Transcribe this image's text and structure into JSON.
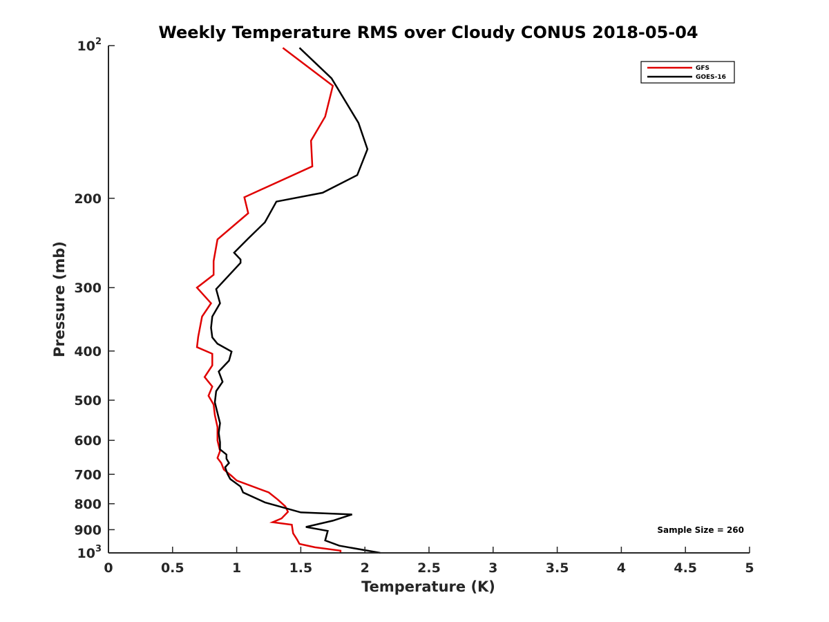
{
  "chart_data": {
    "type": "line",
    "title": "Weekly Temperature RMS over Cloudy CONUS 2018-05-04",
    "xlabel": "Temperature (K)",
    "ylabel": "Pressure (mb)",
    "xlim": [
      0,
      5
    ],
    "ylim": [
      100,
      1000
    ],
    "y_scale": "log",
    "y_reversed": true,
    "grid": false,
    "legend_position": "top-right",
    "x_ticks": [
      {
        "value": 0,
        "label": "0"
      },
      {
        "value": 0.5,
        "label": "0.5"
      },
      {
        "value": 1,
        "label": "1"
      },
      {
        "value": 1.5,
        "label": "1.5"
      },
      {
        "value": 2,
        "label": "2"
      },
      {
        "value": 2.5,
        "label": "2.5"
      },
      {
        "value": 3,
        "label": "3"
      },
      {
        "value": 3.5,
        "label": "3.5"
      },
      {
        "value": 4,
        "label": "4"
      },
      {
        "value": 4.5,
        "label": "4.5"
      },
      {
        "value": 5,
        "label": "5"
      }
    ],
    "y_ticks": [
      {
        "value": 100,
        "base": "10",
        "sup": "2"
      },
      {
        "value": 200,
        "base": "200",
        "sup": ""
      },
      {
        "value": 300,
        "base": "300",
        "sup": ""
      },
      {
        "value": 400,
        "base": "400",
        "sup": ""
      },
      {
        "value": 500,
        "base": "500",
        "sup": ""
      },
      {
        "value": 600,
        "base": "600",
        "sup": ""
      },
      {
        "value": 700,
        "base": "700",
        "sup": ""
      },
      {
        "value": 800,
        "base": "800",
        "sup": ""
      },
      {
        "value": 900,
        "base": "900",
        "sup": ""
      },
      {
        "value": 1000,
        "base": "10",
        "sup": "3"
      }
    ],
    "series": [
      {
        "name": "GFS",
        "color": "#e00000",
        "x": [
          1.36,
          1.75,
          1.69,
          1.58,
          1.59,
          1.06,
          1.09,
          0.85,
          0.82,
          0.82,
          0.69,
          0.8,
          0.73,
          0.7,
          0.69,
          0.81,
          0.81,
          0.75,
          0.81,
          0.78,
          0.82,
          0.83,
          0.85,
          0.85,
          0.87,
          0.85,
          0.88,
          0.9,
          0.96,
          1.0,
          1.25,
          1.32,
          1.38,
          1.4,
          1.35,
          1.28,
          1.43,
          1.44,
          1.47,
          1.49,
          1.61,
          1.81,
          1.81
        ],
        "y": [
          101,
          120,
          138,
          154,
          173,
          199,
          214,
          241,
          266,
          283,
          300,
          322,
          342,
          375,
          393,
          405,
          427,
          450,
          470,
          490,
          510,
          535,
          565,
          600,
          630,
          650,
          665,
          685,
          705,
          720,
          760,
          785,
          810,
          830,
          855,
          870,
          880,
          915,
          940,
          960,
          975,
          990,
          1000
        ]
      },
      {
        "name": "GOES-16",
        "color": "#000000",
        "x": [
          1.49,
          1.74,
          1.95,
          2.02,
          1.94,
          1.67,
          1.31,
          1.22,
          1.09,
          0.98,
          1.03,
          1.03,
          0.84,
          0.87,
          0.81,
          0.8,
          0.81,
          0.85,
          0.96,
          0.94,
          0.86,
          0.89,
          0.84,
          0.83,
          0.85,
          0.87,
          0.86,
          0.87,
          0.87,
          0.92,
          0.92,
          0.94,
          0.91,
          0.92,
          0.93,
          0.95,
          1.03,
          1.05,
          1.22,
          1.5,
          1.9,
          1.75,
          1.54,
          1.71,
          1.69,
          1.8,
          2.12
        ],
        "y": [
          101,
          116,
          142,
          160,
          180,
          195,
          203,
          223,
          240,
          256,
          264,
          268,
          302,
          322,
          342,
          360,
          376,
          387,
          401,
          418,
          439,
          460,
          480,
          505,
          530,
          555,
          580,
          605,
          625,
          640,
          652,
          665,
          678,
          690,
          700,
          715,
          740,
          760,
          795,
          832,
          840,
          864,
          889,
          905,
          945,
          968,
          1000
        ]
      }
    ],
    "annotations": [
      {
        "text": "Sample Size = 260"
      }
    ]
  }
}
